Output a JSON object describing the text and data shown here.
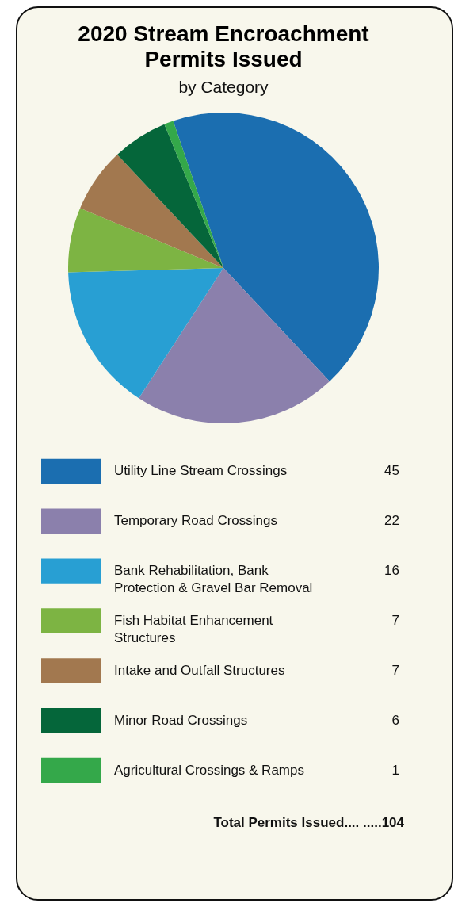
{
  "chart_data": {
    "type": "pie",
    "title": "2020 Stream Encroachment Permits Issued",
    "subtitle": "by Category",
    "categories": [
      "Utility Line Stream Crossings",
      "Temporary Road Crossings",
      "Bank Rehabilitation, Bank Protection & Gravel Bar Removal",
      "Fish Habitat Enhancement Structures",
      "Intake and Outfall Structures",
      "Minor Road Crossings",
      "Agricultural Crossings & Ramps"
    ],
    "values": [
      45,
      22,
      16,
      7,
      7,
      6,
      1
    ],
    "colors": [
      "#1b6eb0",
      "#8b80ac",
      "#289fd3",
      "#7db443",
      "#a2784f",
      "#05663a",
      "#34a84a"
    ],
    "data_labels": true,
    "legend": "bottom",
    "annotations": [
      "Total Permits Issued.... .....104"
    ]
  }
}
